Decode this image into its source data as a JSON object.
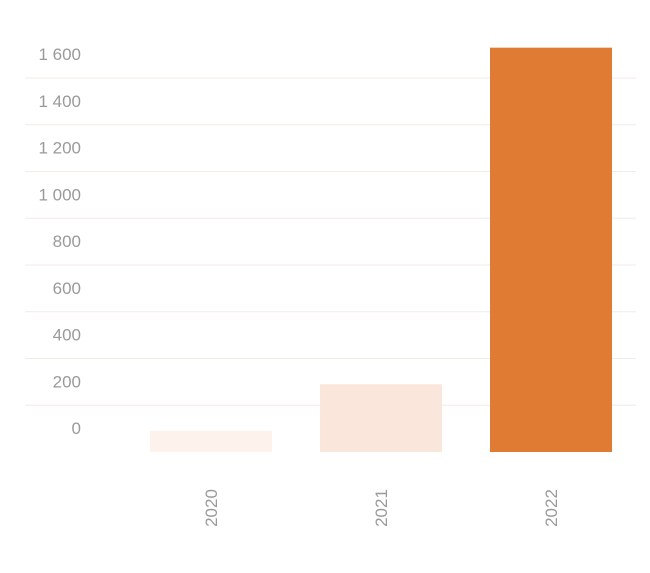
{
  "chart_data": {
    "type": "bar",
    "categories": [
      "2020",
      "2021",
      "2022"
    ],
    "values": [
      90,
      290,
      1730
    ],
    "colors": [
      "#fdf2ec",
      "#fbe6dc",
      "#e07b33"
    ],
    "ylim": [
      0,
      1750
    ],
    "yticks": [
      0,
      200,
      400,
      600,
      800,
      {
        "value": 1000,
        "label": "1 000"
      },
      {
        "value": 1200,
        "label": "1 200"
      },
      {
        "value": 1400,
        "label": "1 400"
      },
      {
        "value": 1600,
        "label": "1 600"
      }
    ],
    "grid": true
  }
}
